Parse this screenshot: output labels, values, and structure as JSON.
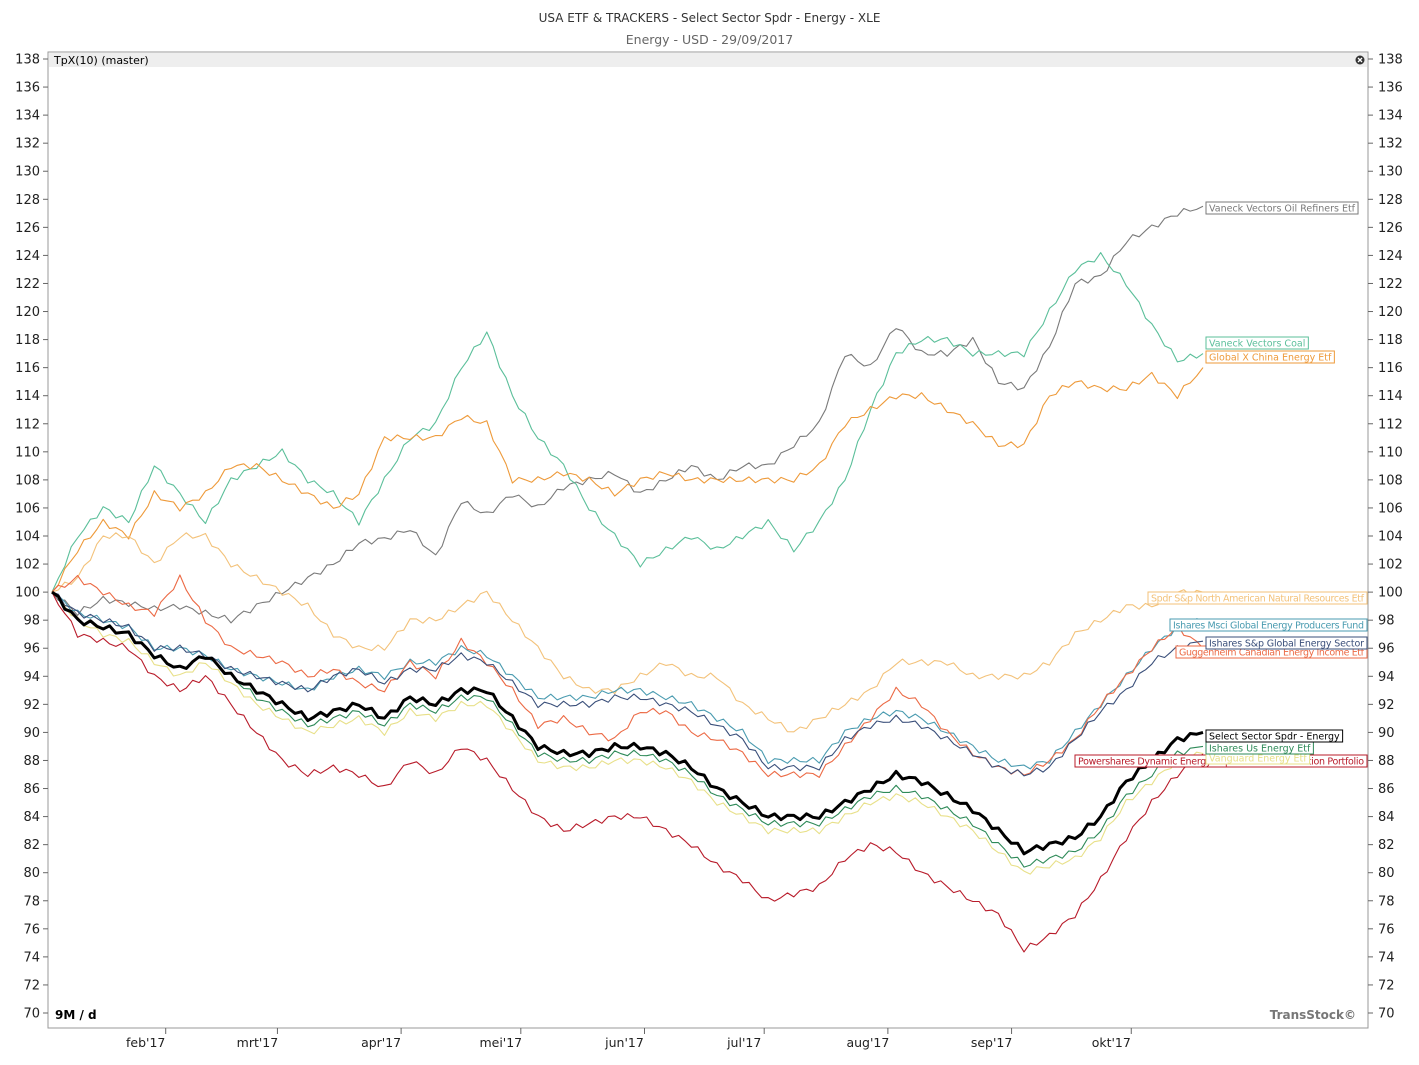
{
  "header": {
    "title": "USA ETF & TRACKERS - Select Sector Spdr - Energy - XLE",
    "subtitle": "Energy - USD - 29/09/2017"
  },
  "panel": {
    "indicator_label": "TpX(10) (master)",
    "close_icon": "close-icon",
    "period_label": "9M / d",
    "watermark": "TransStock©"
  },
  "colors": {
    "xle": "#000000",
    "oil_refiners": "#7a7a7a",
    "coal": "#5bbf9a",
    "china_energy": "#ee9a3a",
    "nat_resources": "#f3c27a",
    "msci_producers": "#4a9bb0",
    "sp_global": "#3a4f7a",
    "canadian_income": "#ec6a45",
    "us_energy": "#2e8a58",
    "vanguard": "#e8e089",
    "powershares": "#b81b2a"
  },
  "chart_data": {
    "type": "line",
    "title": "USA ETF & TRACKERS - Select Sector Spdr - Energy - XLE",
    "subtitle": "Energy - USD - 29/09/2017",
    "xlabel": "",
    "ylabel": "",
    "x_ticks": [
      "feb'17",
      "mrt'17",
      "apr'17",
      "mei'17",
      "jun'17",
      "jul'17",
      "aug'17",
      "sep'17",
      "okt'17"
    ],
    "x_domain": [
      "2017-01-03",
      "2017-10-27"
    ],
    "ylim": [
      70,
      138
    ],
    "y_ticks": [
      70,
      72,
      74,
      76,
      78,
      80,
      82,
      84,
      86,
      88,
      90,
      92,
      94,
      96,
      98,
      100,
      102,
      104,
      106,
      108,
      110,
      112,
      114,
      116,
      118,
      120,
      122,
      124,
      126,
      128,
      130,
      132,
      134,
      136,
      138
    ],
    "grid": false,
    "series": [
      {
        "name": "Vaneck Vectors Oil Refiners Etf",
        "key": "oil_refiners",
        "values": [
          100,
          98.5,
          99.5,
          99.2,
          98.8,
          99,
          98.5,
          98,
          99,
          100,
          101,
          102,
          103.5,
          103.8,
          104.5,
          102.5,
          106.5,
          105.5,
          107,
          106,
          107.5,
          108,
          108.5,
          107,
          108,
          109,
          108,
          109,
          109,
          110.5,
          112,
          117,
          116,
          119,
          117,
          117,
          118,
          115,
          114.5,
          117.5,
          122,
          122.5,
          125,
          126,
          127,
          127.5
        ]
      },
      {
        "name": "Vaneck Vectors Coal",
        "key": "coal",
        "values": [
          100,
          104,
          106,
          105,
          109,
          107,
          105,
          108,
          109,
          110,
          108,
          107,
          105,
          108,
          111,
          112,
          116,
          118.5,
          114,
          111,
          109,
          106,
          104,
          102,
          103,
          104,
          103,
          104,
          105,
          103,
          105,
          108,
          113,
          117,
          118,
          118,
          117,
          117,
          117,
          120,
          123,
          124,
          122,
          119,
          116.5,
          117
        ]
      },
      {
        "name": "Global X China Energy Etf",
        "key": "china_energy",
        "values": [
          100,
          103,
          105,
          104,
          107,
          106,
          107,
          109,
          109,
          108,
          107,
          106,
          107,
          111,
          111,
          111,
          112.5,
          112,
          108,
          108,
          108.5,
          108,
          107,
          108,
          108.5,
          108,
          108,
          108,
          108,
          108,
          109,
          112,
          113,
          114,
          114,
          113,
          112,
          110.5,
          110.5,
          114,
          115,
          114.5,
          114.5,
          115.5,
          114,
          116
        ]
      },
      {
        "name": "Spdr S&p North American Natural Resources Etf",
        "key": "nat_resources",
        "values": [
          100,
          101,
          104,
          104,
          102,
          104,
          104,
          102,
          101,
          100,
          99,
          97,
          96,
          96,
          98,
          98,
          99,
          100,
          98,
          96,
          94,
          93,
          93,
          94,
          95,
          94,
          94,
          92,
          91,
          90,
          91,
          92,
          93,
          95,
          95,
          95,
          94,
          94,
          94,
          95,
          97,
          98,
          99,
          99,
          100,
          100
        ]
      },
      {
        "name": "Ishares Msci Global Energy Producers Fund",
        "key": "msci_producers",
        "values": [
          100,
          98.5,
          98,
          97.5,
          96,
          96,
          95.5,
          94.5,
          94,
          93.5,
          93,
          94,
          94.5,
          94,
          95,
          95,
          96,
          95.5,
          94,
          92.5,
          92.5,
          92.5,
          93,
          93,
          92.5,
          92,
          91,
          90,
          88,
          88,
          88,
          90,
          91,
          91.5,
          91,
          90,
          89,
          88,
          87.5,
          88,
          90,
          92,
          94,
          96,
          97.5,
          98
        ]
      },
      {
        "name": "Ishares S&p Global Energy Sector",
        "key": "sp_global",
        "values": [
          100,
          98.5,
          98,
          97.5,
          96,
          96,
          95.5,
          94.5,
          94,
          93.5,
          93,
          94,
          94.5,
          93.5,
          94.5,
          94.5,
          95.5,
          95,
          93.5,
          92,
          92,
          92,
          92.5,
          92.5,
          92,
          91.5,
          90.5,
          89.5,
          87.5,
          87.5,
          87.5,
          89.5,
          90.5,
          91,
          90.5,
          89.5,
          88.5,
          87.5,
          87,
          87.5,
          89.5,
          91.5,
          93,
          95,
          96,
          96.5
        ]
      },
      {
        "name": "Guggenheim Canadian Energy Income Etf",
        "key": "canadian_income",
        "values": [
          100,
          101,
          100,
          99,
          98.5,
          101,
          98,
          96,
          95.5,
          95,
          94,
          94.5,
          93.5,
          93,
          95,
          94,
          96.5,
          95,
          93,
          90.5,
          91,
          90,
          89.5,
          91.5,
          91.5,
          90,
          89.5,
          88.5,
          87,
          87,
          87,
          89,
          91,
          93,
          92,
          90,
          88.5,
          87.5,
          87,
          88,
          89.5,
          92,
          94,
          96,
          97.5,
          96
        ]
      },
      {
        "name": "Select Sector Spdr - Energy",
        "key": "xle",
        "values": [
          100,
          98,
          97.5,
          97,
          95.5,
          94.5,
          95.5,
          94,
          93,
          92,
          91,
          91.5,
          92,
          91,
          92.5,
          92,
          93,
          93,
          91,
          89,
          88.5,
          88.5,
          89,
          89,
          88.5,
          87.5,
          86,
          85,
          84,
          84,
          84,
          85,
          86,
          87,
          86.5,
          85.5,
          84.5,
          83,
          81.5,
          82,
          82.5,
          84,
          86.5,
          88,
          89.5,
          90
        ]
      },
      {
        "name": "Ishares Us Energy Etf",
        "key": "us_energy",
        "values": [
          100,
          98,
          97.5,
          97,
          95.5,
          94.5,
          95.5,
          94,
          92.5,
          91.5,
          90.5,
          91,
          91.5,
          90.5,
          92,
          91.5,
          92.5,
          92.5,
          90.5,
          88.5,
          88,
          88,
          88.5,
          88.5,
          88,
          87,
          85.5,
          84.5,
          83.5,
          83.5,
          83.5,
          84.5,
          85.5,
          86,
          85.5,
          84.5,
          83.5,
          82,
          80.5,
          81,
          81.5,
          83,
          85.5,
          87,
          88.5,
          89
        ]
      },
      {
        "name": "Vanguard Energy Etf",
        "key": "vanguard",
        "values": [
          100,
          98,
          97,
          96.5,
          95,
          94,
          95,
          93.5,
          92,
          91,
          90,
          90.5,
          91,
          90,
          91.5,
          91,
          92,
          92,
          90,
          88,
          87.5,
          87.5,
          88,
          88,
          87.5,
          86.5,
          85,
          84,
          83,
          83,
          83,
          84,
          85,
          85.5,
          85,
          84,
          83,
          81.5,
          80,
          80.5,
          81,
          82.5,
          85,
          86.5,
          88,
          88.5
        ]
      },
      {
        "name": "Powershares Dynamic Energy Exploration & Production Portfolio",
        "key": "powershares",
        "values": [
          100,
          97,
          96.5,
          96,
          94,
          93,
          94,
          92,
          90,
          88,
          87,
          87.5,
          87,
          86,
          88,
          87,
          89,
          88,
          86,
          84,
          83,
          83.5,
          84,
          84,
          83,
          82,
          80.5,
          79.5,
          78,
          78.5,
          79,
          81,
          82,
          81.5,
          80,
          79,
          78,
          77,
          74.5,
          75.5,
          77,
          79.5,
          82.5,
          85,
          87,
          88.5
        ]
      }
    ]
  }
}
